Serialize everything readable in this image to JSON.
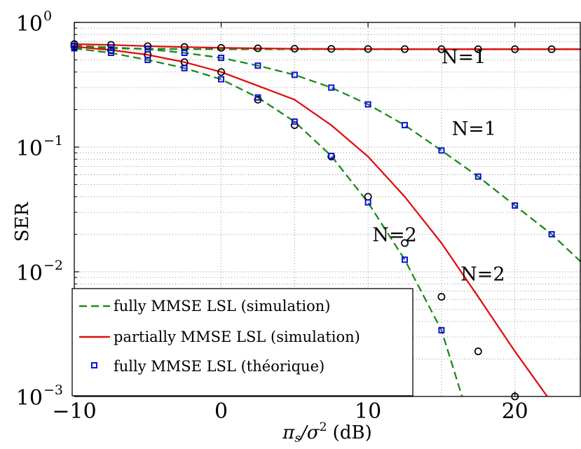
{
  "chart_data": {
    "type": "line",
    "title": "",
    "xlabel": {
      "base": "π",
      "sub": "s",
      "mid": "/σ",
      "sup": "2",
      "tail": " (dB)"
    },
    "ylabel": "SER",
    "xlim": [
      -10,
      24.5
    ],
    "ylim": [
      0.001,
      1
    ],
    "yscale": "log",
    "grid": true,
    "legend_position": "bottom-left",
    "x_ticks": [
      {
        "value": -10,
        "label": "−10"
      },
      {
        "value": 0,
        "label": "0"
      },
      {
        "value": 10,
        "label": "10"
      },
      {
        "value": 20,
        "label": "20"
      }
    ],
    "y_ticks": [
      {
        "value": 1,
        "base": "10",
        "exp": "0"
      },
      {
        "value": 0.1,
        "base": "10",
        "exp": "−1"
      },
      {
        "value": 0.01,
        "base": "10",
        "exp": "−2"
      },
      {
        "value": 0.001,
        "base": "10",
        "exp": "−3"
      }
    ],
    "colors": {
      "fully": "#1a8a1a",
      "partially": "#e01010",
      "theory": "#1010d8",
      "circles": "#000000"
    },
    "series": [
      {
        "name": "fully MMSE LSL (simulation)",
        "style": "dashed",
        "color": "#1a8a1a",
        "x": [
          -10,
          -7.5,
          -5,
          -2.5,
          0,
          2.5,
          5,
          7.5,
          10,
          12.5,
          15,
          17.5,
          20,
          22.5,
          24.5
        ],
        "y": [
          0.65,
          0.63,
          0.61,
          0.57,
          0.52,
          0.45,
          0.38,
          0.3,
          0.22,
          0.15,
          0.094,
          0.058,
          0.034,
          0.02,
          0.012
        ]
      },
      {
        "name": "",
        "style": "flat-dashed",
        "color": "#1a8a1a",
        "x": [
          -10,
          -7.5,
          -5,
          -2.5,
          0,
          2.5,
          5,
          7.5,
          10,
          12.5,
          15,
          17.5,
          20,
          22.5,
          24.5
        ],
        "y": [
          0.625,
          0.62,
          0.615,
          0.612,
          0.61,
          0.61,
          0.61,
          0.61,
          0.61,
          0.61,
          0.61,
          0.61,
          0.61,
          0.61,
          0.61
        ]
      },
      {
        "name": "",
        "style": "dashed",
        "color": "#1a8a1a",
        "x": [
          -10,
          -7.5,
          -5,
          -2.5,
          0,
          2.5,
          5,
          7.5,
          10,
          12.5,
          15,
          16.4
        ],
        "y": [
          0.62,
          0.57,
          0.5,
          0.43,
          0.35,
          0.25,
          0.16,
          0.085,
          0.036,
          0.0125,
          0.0034,
          0.001
        ]
      },
      {
        "name": "partially MMSE LSL (simulation)",
        "style": "solid",
        "color": "#e01010",
        "x": [
          -10,
          -7.5,
          -5,
          -2.5,
          0,
          2.5,
          5,
          7.5,
          10,
          12.5,
          15,
          17.5,
          20,
          22.5,
          24.5
        ],
        "y": [
          0.67,
          0.66,
          0.645,
          0.635,
          0.625,
          0.62,
          0.615,
          0.613,
          0.612,
          0.611,
          0.61,
          0.61,
          0.61,
          0.61,
          0.61
        ]
      },
      {
        "name": "",
        "style": "solid",
        "color": "#e01010",
        "x": [
          -10,
          -7.5,
          -5,
          -2.5,
          0,
          2.5,
          5,
          7.5,
          10,
          12.5,
          15,
          17.5,
          20,
          22.2
        ],
        "y": [
          0.64,
          0.6,
          0.55,
          0.48,
          0.4,
          0.31,
          0.24,
          0.15,
          0.084,
          0.04,
          0.017,
          0.0063,
          0.0023,
          0.001
        ]
      },
      {
        "name": "",
        "style": "markers-circle",
        "color": "#000000",
        "x": [
          -10,
          -7.5,
          -5,
          -2.5,
          0,
          2.5,
          5,
          7.5,
          10,
          12.5,
          15,
          17.5,
          20,
          22.5
        ],
        "y": [
          0.67,
          0.66,
          0.645,
          0.635,
          0.625,
          0.62,
          0.615,
          0.613,
          0.612,
          0.611,
          0.61,
          0.61,
          0.61,
          0.61
        ]
      },
      {
        "name": "",
        "style": "markers-circle",
        "color": "#000000",
        "x": [
          -10,
          -7.5,
          -5,
          -2.5,
          0,
          2.5,
          5,
          7.5,
          10,
          12.5,
          15,
          17.5,
          20
        ],
        "y": [
          0.64,
          0.6,
          0.55,
          0.48,
          0.4,
          0.24,
          0.15,
          0.084,
          0.04,
          0.017,
          0.0063,
          0.0023,
          0.001
        ]
      },
      {
        "name": "fully MMSE LSL (théorique)",
        "style": "markers-square",
        "color": "#1010d8",
        "x": [
          -10,
          -7.5,
          -5,
          -2.5,
          0,
          2.5,
          5,
          7.5,
          10,
          12.5,
          15,
          17.5,
          20,
          22.5
        ],
        "y": [
          0.65,
          0.63,
          0.61,
          0.57,
          0.52,
          0.45,
          0.38,
          0.3,
          0.22,
          0.15,
          0.094,
          0.058,
          0.034,
          0.02
        ]
      },
      {
        "name": "",
        "style": "markers-square",
        "color": "#1010d8",
        "x": [
          -10,
          -7.5,
          -5,
          -2.5,
          0,
          2.5,
          5,
          7.5,
          10,
          12.5,
          15
        ],
        "y": [
          0.62,
          0.57,
          0.5,
          0.43,
          0.35,
          0.25,
          0.16,
          0.085,
          0.036,
          0.0125,
          0.0034
        ]
      }
    ],
    "annotations": [
      {
        "text": "N=1",
        "x": 15,
        "y": 0.47
      },
      {
        "text": "N=1",
        "x": 15.7,
        "y": 0.125
      },
      {
        "text": "N=2",
        "x": 10.3,
        "y": 0.0175
      },
      {
        "text": "N=2",
        "x": 16.3,
        "y": 0.0085
      }
    ],
    "legend": [
      {
        "label": "fully MMSE LSL (simulation)",
        "style": "dashed",
        "color": "#1a8a1a"
      },
      {
        "label": "partially MMSE LSL (simulation)",
        "style": "solid",
        "color": "#e01010"
      },
      {
        "label": "fully MMSE LSL (théorique)",
        "style": "markers-square",
        "color": "#1010d8"
      }
    ]
  }
}
